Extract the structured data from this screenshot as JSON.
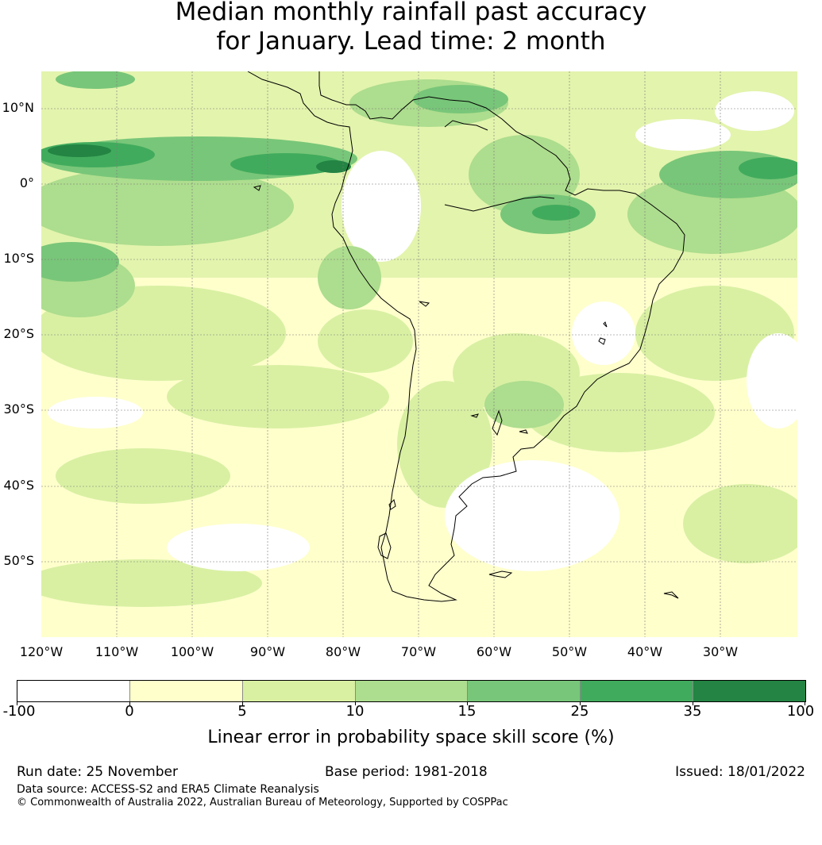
{
  "title_line1": "Median monthly rainfall past accuracy",
  "title_line2": "for January. Lead time: 2 month",
  "lat_labels": [
    "10°N",
    "0°",
    "10°S",
    "20°S",
    "30°S",
    "40°S",
    "50°S"
  ],
  "lon_labels": [
    "120°W",
    "110°W",
    "100°W",
    "90°W",
    "80°W",
    "70°W",
    "60°W",
    "50°W",
    "40°W",
    "30°W"
  ],
  "colorbar": {
    "ticks": [
      "-100",
      "0",
      "5",
      "10",
      "15",
      "25",
      "35",
      "100"
    ],
    "colors": [
      "#ffffff",
      "#ffffcc",
      "#d9f0a3",
      "#addd8e",
      "#78c679",
      "#41ab5d",
      "#238443"
    ],
    "label": "Linear error in probability space skill score (%)"
  },
  "footer": {
    "run_date": "Run date: 25 November",
    "base_period": "Base period: 1981-2018",
    "issued": "Issued: 18/01/2022",
    "data_source": "Data source: ACCESS-S2 and ERA5 Climate Reanalysis",
    "copyright": "© Commonwealth of Australia 2022, Australian Bureau of Meteorology, Supported by COSPPac"
  }
}
